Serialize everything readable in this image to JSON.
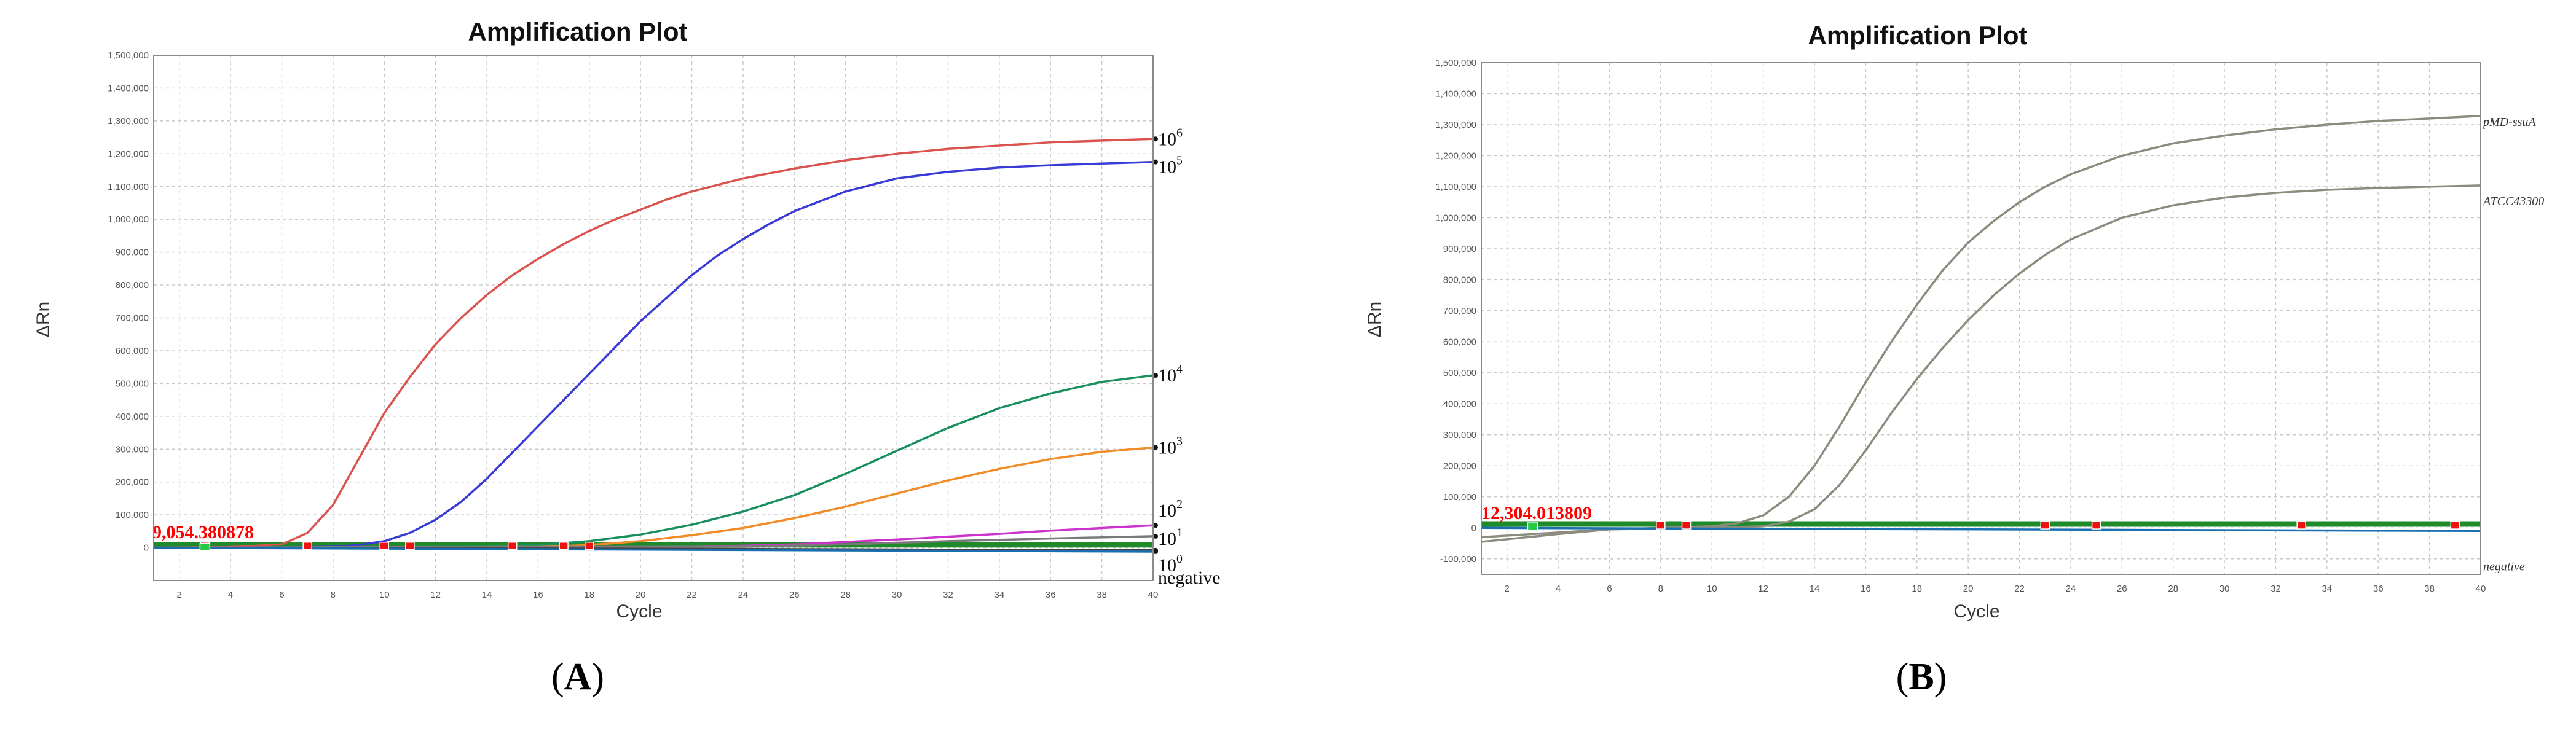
{
  "panels": [
    {
      "label_prefix": "(",
      "label": "A",
      "label_suffix": ")"
    },
    {
      "label_prefix": "(",
      "label": "B",
      "label_suffix": ")"
    }
  ],
  "chart_data": [
    {
      "type": "line",
      "title": "Amplification Plot",
      "xlabel": "Cycle",
      "ylabel": "ΔRn",
      "xlim": [
        1,
        40
      ],
      "ylim": [
        -100000,
        1500000
      ],
      "grid": true,
      "x_ticks": [
        2,
        4,
        6,
        8,
        10,
        12,
        14,
        16,
        18,
        20,
        22,
        24,
        26,
        28,
        30,
        32,
        34,
        36,
        38,
        40
      ],
      "y_ticks": [
        0,
        100000,
        200000,
        300000,
        400000,
        500000,
        600000,
        700000,
        800000,
        900000,
        1000000,
        1100000,
        1200000,
        1300000,
        1400000,
        1500000
      ],
      "y_tick_labels": [
        "0",
        "100,000",
        "200,000",
        "300,000",
        "400,000",
        "500,000",
        "600,000",
        "700,000",
        "800,000",
        "900,000",
        "1,000,000",
        "1,100,000",
        "1,200,000",
        "1,300,000",
        "1,400,000",
        "1,500,000"
      ],
      "threshold": {
        "value": 9054.380878,
        "label": "9,054.380878"
      },
      "series": [
        {
          "label_base": "10",
          "label_exp": "6",
          "color": "#d9534f",
          "x": [
            1,
            4,
            6,
            7,
            8,
            9,
            10,
            11,
            12,
            13,
            14,
            15,
            16,
            17,
            18,
            19,
            20,
            21,
            22,
            23,
            24,
            25,
            26,
            28,
            30,
            32,
            34,
            36,
            38,
            40
          ],
          "y": [
            0,
            2000,
            10000,
            45000,
            130000,
            270000,
            410000,
            520000,
            620000,
            700000,
            770000,
            830000,
            880000,
            925000,
            965000,
            1000000,
            1030000,
            1060000,
            1085000,
            1105000,
            1125000,
            1140000,
            1155000,
            1180000,
            1200000,
            1215000,
            1225000,
            1235000,
            1240000,
            1245000
          ]
        },
        {
          "label_base": "10",
          "label_exp": "5",
          "color": "#3a3ad6",
          "x": [
            1,
            6,
            8,
            9,
            10,
            11,
            12,
            13,
            14,
            15,
            16,
            17,
            18,
            19,
            20,
            21,
            22,
            23,
            24,
            25,
            26,
            28,
            30,
            32,
            34,
            36,
            38,
            40
          ],
          "y": [
            0,
            1000,
            3000,
            8000,
            20000,
            45000,
            85000,
            140000,
            210000,
            290000,
            370000,
            450000,
            530000,
            610000,
            690000,
            760000,
            830000,
            890000,
            940000,
            985000,
            1025000,
            1085000,
            1125000,
            1145000,
            1158000,
            1165000,
            1170000,
            1175000
          ]
        },
        {
          "label_base": "10",
          "label_exp": "4",
          "color": "#1a8f5e",
          "x": [
            1,
            14,
            16,
            18,
            20,
            22,
            24,
            26,
            28,
            30,
            32,
            34,
            36,
            38,
            40
          ],
          "y": [
            0,
            3000,
            8000,
            20000,
            40000,
            70000,
            110000,
            160000,
            225000,
            295000,
            365000,
            425000,
            470000,
            505000,
            525000
          ]
        },
        {
          "label_base": "10",
          "label_exp": "3",
          "color": "#f28c28",
          "x": [
            1,
            16,
            18,
            20,
            22,
            24,
            26,
            28,
            30,
            32,
            34,
            36,
            38,
            40
          ],
          "y": [
            0,
            2000,
            8000,
            20000,
            38000,
            60000,
            90000,
            125000,
            165000,
            205000,
            240000,
            270000,
            292000,
            305000
          ]
        },
        {
          "label_base": "10",
          "label_exp": "2",
          "color": "#cc33cc",
          "x": [
            1,
            22,
            26,
            30,
            34,
            36,
            38,
            40
          ],
          "y": [
            0,
            2000,
            10000,
            25000,
            42000,
            52000,
            60000,
            68000
          ]
        },
        {
          "label_base": "10",
          "label_exp": "1",
          "color": "#7a7a7a",
          "x": [
            1,
            24,
            28,
            32,
            36,
            40
          ],
          "y": [
            0,
            3000,
            10000,
            20000,
            28000,
            35000
          ]
        },
        {
          "label_base": "10",
          "label_exp": "0",
          "color": "#444444",
          "x": [
            1,
            20,
            40
          ],
          "y": [
            0,
            -3000,
            -8000
          ]
        },
        {
          "label_base": "negative",
          "label_exp": "",
          "color": "#1a6fb0",
          "x": [
            1,
            40
          ],
          "y": [
            0,
            -12000
          ]
        }
      ],
      "ct_markers": [
        3,
        7,
        10,
        11,
        15,
        17,
        18
      ],
      "baseline_marker": 3
    },
    {
      "type": "line",
      "title": "Amplification Plot",
      "xlabel": "Cycle",
      "ylabel": "ΔRn",
      "xlim": [
        1,
        40
      ],
      "ylim": [
        -150000,
        1500000
      ],
      "grid": true,
      "x_ticks": [
        2,
        4,
        6,
        8,
        10,
        12,
        14,
        16,
        18,
        20,
        22,
        24,
        26,
        28,
        30,
        32,
        34,
        36,
        38,
        40
      ],
      "y_ticks": [
        -100000,
        0,
        100000,
        200000,
        300000,
        400000,
        500000,
        600000,
        700000,
        800000,
        900000,
        1000000,
        1100000,
        1200000,
        1300000,
        1400000,
        1500000
      ],
      "y_tick_labels": [
        "-100,000",
        "0",
        "100,000",
        "200,000",
        "300,000",
        "400,000",
        "500,000",
        "600,000",
        "700,000",
        "800,000",
        "900,000",
        "1,000,000",
        "1,100,000",
        "1,200,000",
        "1,300,000",
        "1,400,000",
        "1,500,000"
      ],
      "threshold": {
        "value": 12304.013809,
        "label": "12,304.013809"
      },
      "series": [
        {
          "label_base": "pMD-ssuA",
          "label_exp": "",
          "color": "#8c8c7e",
          "x": [
            1,
            4,
            6,
            8,
            10,
            11,
            12,
            13,
            14,
            15,
            16,
            17,
            18,
            19,
            20,
            21,
            22,
            23,
            24,
            26,
            28,
            30,
            32,
            34,
            36,
            38,
            40
          ],
          "y": [
            -45000,
            -20000,
            -5000,
            0,
            5000,
            15000,
            40000,
            100000,
            200000,
            330000,
            470000,
            600000,
            720000,
            830000,
            920000,
            990000,
            1050000,
            1100000,
            1140000,
            1200000,
            1240000,
            1265000,
            1285000,
            1300000,
            1312000,
            1320000,
            1328000
          ]
        },
        {
          "label_base": "ATCC43300",
          "label_exp": "",
          "color": "#8c8c7e",
          "x": [
            1,
            6,
            10,
            12,
            13,
            14,
            15,
            16,
            17,
            18,
            19,
            20,
            21,
            22,
            23,
            24,
            26,
            28,
            30,
            32,
            34,
            36,
            38,
            40
          ],
          "y": [
            -30000,
            -5000,
            0,
            5000,
            20000,
            60000,
            140000,
            250000,
            370000,
            480000,
            580000,
            670000,
            750000,
            820000,
            880000,
            930000,
            1000000,
            1040000,
            1065000,
            1080000,
            1090000,
            1096000,
            1100000,
            1104000
          ]
        },
        {
          "label_base": "negative",
          "label_exp": "",
          "color": "#1a6fb0",
          "x": [
            1,
            40
          ],
          "y": [
            0,
            -10000
          ]
        }
      ],
      "ct_markers": [
        8,
        9,
        23,
        25,
        33,
        39
      ],
      "baseline_marker": 3
    }
  ]
}
